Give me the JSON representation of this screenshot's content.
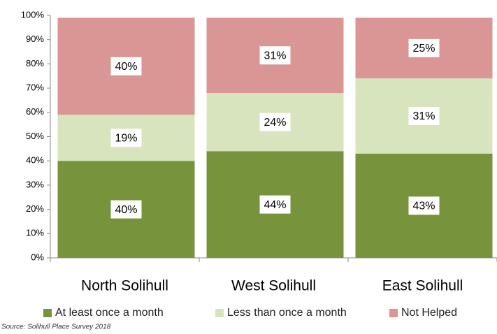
{
  "chart_data": {
    "type": "stacked_bar",
    "categories": [
      "North Solihull",
      "West Solihull",
      "East Solihull"
    ],
    "series": [
      {
        "name": "At least once a month",
        "color": "#77933c",
        "values": [
          40,
          44,
          43
        ],
        "value_labels": [
          "40%",
          "44%",
          "43%"
        ]
      },
      {
        "name": "Less than once a month",
        "color": "#d7e4bd",
        "values": [
          19,
          24,
          31
        ],
        "value_labels": [
          "19%",
          "24%",
          "31%"
        ]
      },
      {
        "name": "Not Helped",
        "color": "#d99694",
        "values": [
          40,
          31,
          25
        ],
        "value_labels": [
          "40%",
          "31%",
          "25%"
        ]
      }
    ],
    "ylim": [
      0,
      100
    ],
    "yticks": [
      {
        "value": 0,
        "label": "0%"
      },
      {
        "value": 10,
        "label": "10%"
      },
      {
        "value": 20,
        "label": "20%"
      },
      {
        "value": 30,
        "label": "30%"
      },
      {
        "value": 40,
        "label": "40%"
      },
      {
        "value": 50,
        "label": "50%"
      },
      {
        "value": 60,
        "label": "60%"
      },
      {
        "value": 70,
        "label": "70%"
      },
      {
        "value": 80,
        "label": "80%"
      },
      {
        "value": 90,
        "label": "90%"
      },
      {
        "value": 100,
        "label": "100%"
      }
    ],
    "grid": false,
    "legend": "bottom",
    "source": "Source: Solihull Place Survey 2018"
  }
}
